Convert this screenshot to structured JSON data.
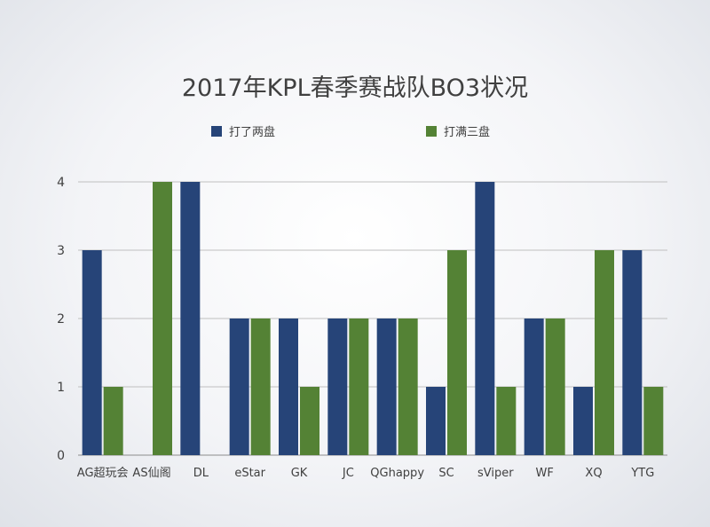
{
  "chart_data": {
    "type": "bar",
    "title": "2017年KPL春季赛战队BO3状况",
    "xlabel": "",
    "ylabel": "",
    "categories": [
      "AG超玩会",
      "AS仙阁",
      "DL",
      "eStar",
      "GK",
      "JC",
      "QGhappy",
      "SC",
      "sViper",
      "WF",
      "XQ",
      "YTG"
    ],
    "series": [
      {
        "name": "打了两盘",
        "color": "#264478",
        "values": [
          3,
          0,
          4,
          2,
          2,
          2,
          2,
          1,
          4,
          2,
          1,
          3
        ]
      },
      {
        "name": "打满三盘",
        "color": "#548235",
        "values": [
          1,
          4,
          0,
          2,
          1,
          2,
          2,
          3,
          1,
          2,
          3,
          1
        ]
      }
    ],
    "ylim": [
      0,
      4
    ],
    "yticks": [
      0,
      1,
      2,
      3,
      4
    ],
    "grid": true,
    "legend_position": "top"
  }
}
